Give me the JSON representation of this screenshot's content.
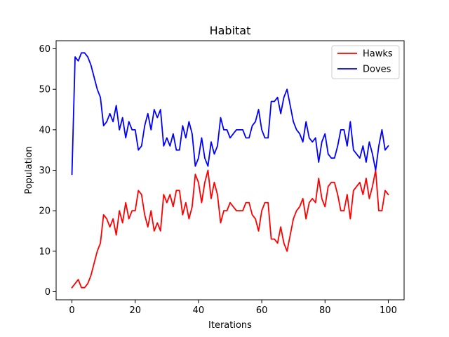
{
  "chart_data": {
    "type": "line",
    "title": "Habitat",
    "xlabel": "Iterations",
    "ylabel": "Population",
    "xlim": [
      -5,
      105
    ],
    "ylim": [
      -2,
      62
    ],
    "xticks": [
      0,
      20,
      40,
      60,
      80,
      100
    ],
    "yticks": [
      0,
      10,
      20,
      30,
      40,
      50,
      60
    ],
    "grid": false,
    "legend_position": "upper right",
    "x": [
      0,
      1,
      2,
      3,
      4,
      5,
      6,
      7,
      8,
      9,
      10,
      11,
      12,
      13,
      14,
      15,
      16,
      17,
      18,
      19,
      20,
      21,
      22,
      23,
      24,
      25,
      26,
      27,
      28,
      29,
      30,
      31,
      32,
      33,
      34,
      35,
      36,
      37,
      38,
      39,
      40,
      41,
      42,
      43,
      44,
      45,
      46,
      47,
      48,
      49,
      50,
      51,
      52,
      53,
      54,
      55,
      56,
      57,
      58,
      59,
      60,
      61,
      62,
      63,
      64,
      65,
      66,
      67,
      68,
      69,
      70,
      71,
      72,
      73,
      74,
      75,
      76,
      77,
      78,
      79,
      80,
      81,
      82,
      83,
      84,
      85,
      86,
      87,
      88,
      89,
      90,
      91,
      92,
      93,
      94,
      95,
      96,
      97,
      98,
      99,
      100
    ],
    "series": [
      {
        "name": "Hawks",
        "color": "#ff0000",
        "values": [
          1,
          2,
          3,
          1,
          1,
          2,
          4,
          7,
          10,
          12,
          19,
          18,
          16,
          18,
          14,
          20,
          17,
          22,
          18,
          20,
          20,
          25,
          24,
          19,
          16,
          20,
          15,
          17,
          15,
          24,
          22,
          24,
          21,
          25,
          25,
          19,
          22,
          18,
          21,
          29,
          27,
          22,
          27,
          30,
          23,
          27,
          24,
          17,
          20,
          20,
          22,
          21,
          20,
          20,
          20,
          22,
          22,
          19,
          18,
          15,
          20,
          22,
          22,
          13,
          13,
          12,
          16,
          12,
          10,
          14,
          18,
          20,
          21,
          23,
          18,
          22,
          23,
          22,
          28,
          23,
          21,
          26,
          27,
          27,
          24,
          20,
          20,
          24,
          18,
          25,
          26,
          27,
          24,
          28,
          23,
          26,
          30,
          20,
          20,
          25,
          24
        ]
      },
      {
        "name": "Doves",
        "color": "#0000ff",
        "values": [
          29,
          58,
          57,
          59,
          59,
          58,
          56,
          53,
          50,
          48,
          41,
          42,
          44,
          42,
          46,
          40,
          43,
          38,
          42,
          40,
          40,
          35,
          36,
          41,
          44,
          40,
          45,
          43,
          45,
          36,
          38,
          36,
          39,
          35,
          35,
          41,
          38,
          42,
          39,
          31,
          33,
          38,
          33,
          31,
          37,
          34,
          36,
          43,
          40,
          40,
          38,
          39,
          40,
          40,
          40,
          38,
          38,
          41,
          42,
          45,
          40,
          38,
          38,
          47,
          47,
          48,
          44,
          48,
          50,
          46,
          42,
          40,
          39,
          37,
          42,
          38,
          37,
          38,
          32,
          37,
          39,
          34,
          33,
          33,
          36,
          40,
          40,
          36,
          42,
          35,
          34,
          33,
          36,
          32,
          37,
          34,
          30,
          36,
          40,
          35,
          36
        ]
      }
    ]
  }
}
